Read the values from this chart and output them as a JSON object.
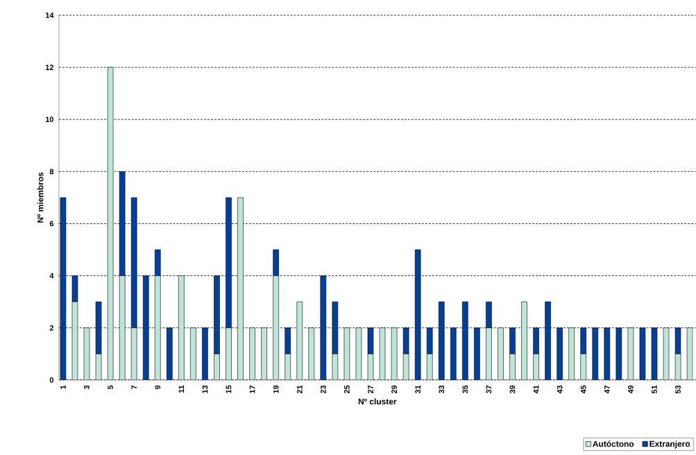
{
  "chart_data": {
    "type": "bar",
    "stacked": true,
    "xlabel": "Nº cluster",
    "ylabel": "Nº miembros",
    "categories": [
      "1",
      null,
      "3",
      null,
      "5",
      null,
      "7",
      null,
      "9",
      null,
      "11",
      null,
      "13",
      null,
      "15",
      null,
      "17",
      null,
      "19",
      null,
      "21",
      null,
      "23",
      null,
      "25",
      null,
      "27",
      null,
      "29",
      null,
      "31",
      null,
      "33",
      null,
      "35",
      null,
      "37",
      null,
      "39",
      null,
      "41",
      null,
      "43",
      null,
      "45",
      null,
      "47",
      null,
      "49",
      null,
      "51",
      null,
      "53",
      null
    ],
    "series": [
      {
        "name": "Autóctono",
        "color": "#bfe5da",
        "values": [
          0,
          3,
          2,
          1,
          12,
          4,
          2,
          0,
          4,
          0,
          4,
          2,
          0,
          1,
          2,
          7,
          2,
          2,
          4,
          1,
          3,
          2,
          0,
          1,
          2,
          2,
          1,
          2,
          2,
          1,
          0,
          1,
          0,
          0,
          0,
          0,
          2,
          2,
          1,
          3,
          1,
          0,
          0,
          2,
          1,
          0,
          0,
          0,
          2,
          0,
          0,
          2,
          1,
          2
        ]
      },
      {
        "name": "Extranjero",
        "color": "#003f9a",
        "values": [
          7,
          1,
          0,
          2,
          0,
          4,
          5,
          4,
          1,
          2,
          0,
          0,
          2,
          3,
          5,
          0,
          0,
          0,
          1,
          1,
          0,
          0,
          4,
          2,
          0,
          0,
          1,
          0,
          0,
          1,
          5,
          1,
          3,
          2,
          3,
          2,
          1,
          0,
          1,
          0,
          1,
          3,
          2,
          0,
          1,
          2,
          2,
          2,
          0,
          2,
          2,
          0,
          1,
          0
        ]
      }
    ],
    "ylim": [
      0,
      14
    ],
    "yticks": [
      0,
      2,
      4,
      6,
      8,
      10,
      12,
      14
    ],
    "grid": "y",
    "legend": "bottom right"
  }
}
